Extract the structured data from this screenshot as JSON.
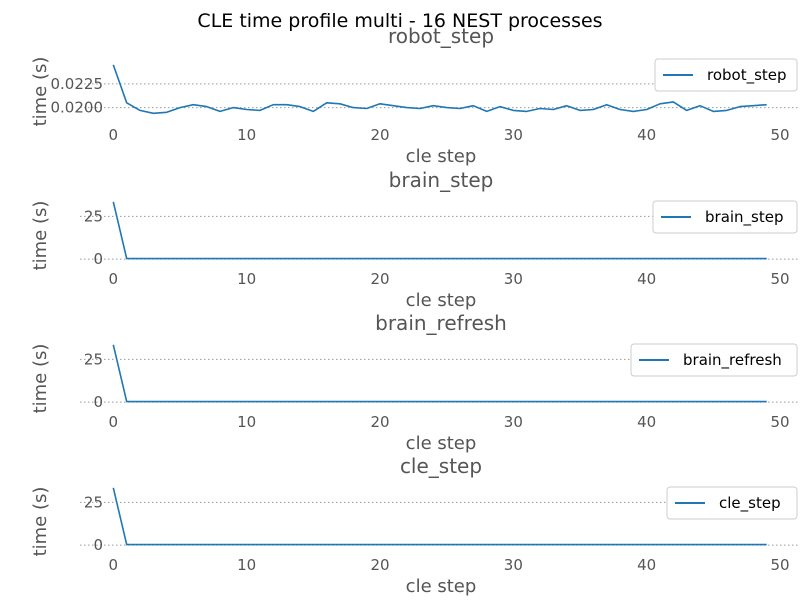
{
  "figure": {
    "suptitle": "CLE time profile multi - 16 NEST processes"
  },
  "chart_data": [
    {
      "type": "line",
      "title": "robot_step",
      "xlabel": "cle step",
      "ylabel": "time (s)",
      "xlim": [
        -2.5,
        51.5
      ],
      "ylim": [
        0.0189,
        0.0266
      ],
      "xticks": [
        0,
        10,
        20,
        30,
        40,
        50
      ],
      "yticks": [
        0.02,
        0.0225
      ],
      "ytick_labels": [
        "0.0200",
        "0.0225"
      ],
      "grid": "y dotted",
      "legend_position": "right",
      "series": [
        {
          "name": "robot_step",
          "color": "#1f77b4",
          "x": [
            0,
            1,
            2,
            3,
            4,
            5,
            6,
            7,
            8,
            9,
            10,
            11,
            12,
            13,
            14,
            15,
            16,
            17,
            18,
            19,
            20,
            21,
            22,
            23,
            24,
            25,
            26,
            27,
            28,
            29,
            30,
            31,
            32,
            33,
            34,
            35,
            36,
            37,
            38,
            39,
            40,
            41,
            42,
            43,
            44,
            45,
            46,
            47,
            48,
            49
          ],
          "values": [
            0.0245,
            0.0205,
            0.0197,
            0.0194,
            0.0195,
            0.02,
            0.0203,
            0.0201,
            0.0196,
            0.02,
            0.0198,
            0.0197,
            0.0203,
            0.0203,
            0.0201,
            0.0196,
            0.0205,
            0.0204,
            0.02,
            0.0199,
            0.0204,
            0.0202,
            0.02,
            0.0199,
            0.0202,
            0.02,
            0.0199,
            0.0202,
            0.0196,
            0.0201,
            0.0197,
            0.0196,
            0.0199,
            0.0198,
            0.0202,
            0.0197,
            0.0198,
            0.0203,
            0.0198,
            0.0196,
            0.0198,
            0.0204,
            0.0206,
            0.0197,
            0.0202,
            0.0196,
            0.0197,
            0.0201,
            0.0202,
            0.0203
          ]
        }
      ]
    },
    {
      "type": "line",
      "title": "brain_step",
      "xlabel": "cle step",
      "ylabel": "time (s)",
      "xlim": [
        -2.5,
        51.5
      ],
      "ylim": [
        -1.7,
        41
      ],
      "xticks": [
        0,
        10,
        20,
        30,
        40,
        50
      ],
      "yticks": [
        0,
        25
      ],
      "ytick_labels": [
        "0",
        "25"
      ],
      "grid": "y dotted",
      "legend_position": "right",
      "series": [
        {
          "name": "brain_step",
          "color": "#1f77b4",
          "x": [
            0,
            1,
            2,
            3,
            4,
            5,
            6,
            7,
            8,
            9,
            10,
            11,
            12,
            13,
            14,
            15,
            16,
            17,
            18,
            19,
            20,
            21,
            22,
            23,
            24,
            25,
            26,
            27,
            28,
            29,
            30,
            31,
            32,
            33,
            34,
            35,
            36,
            37,
            38,
            39,
            40,
            41,
            42,
            43,
            44,
            45,
            46,
            47,
            48,
            49
          ],
          "values": [
            33.5,
            0.3,
            0.3,
            0.3,
            0.3,
            0.3,
            0.3,
            0.3,
            0.3,
            0.3,
            0.3,
            0.3,
            0.3,
            0.3,
            0.3,
            0.3,
            0.3,
            0.3,
            0.3,
            0.3,
            0.3,
            0.3,
            0.3,
            0.3,
            0.3,
            0.3,
            0.3,
            0.3,
            0.3,
            0.3,
            0.3,
            0.3,
            0.3,
            0.3,
            0.3,
            0.3,
            0.3,
            0.3,
            0.3,
            0.3,
            0.3,
            0.3,
            0.3,
            0.3,
            0.3,
            0.3,
            0.3,
            0.3,
            0.3,
            0.3
          ]
        }
      ]
    },
    {
      "type": "line",
      "title": "brain_refresh",
      "xlabel": "cle step",
      "ylabel": "time (s)",
      "xlim": [
        -2.5,
        51.5
      ],
      "ylim": [
        -1.7,
        41
      ],
      "xticks": [
        0,
        10,
        20,
        30,
        40,
        50
      ],
      "yticks": [
        0,
        25
      ],
      "ytick_labels": [
        "0",
        "25"
      ],
      "grid": "y dotted",
      "legend_position": "right",
      "series": [
        {
          "name": "brain_refresh",
          "color": "#1f77b4",
          "x": [
            0,
            1,
            2,
            3,
            4,
            5,
            6,
            7,
            8,
            9,
            10,
            11,
            12,
            13,
            14,
            15,
            16,
            17,
            18,
            19,
            20,
            21,
            22,
            23,
            24,
            25,
            26,
            27,
            28,
            29,
            30,
            31,
            32,
            33,
            34,
            35,
            36,
            37,
            38,
            39,
            40,
            41,
            42,
            43,
            44,
            45,
            46,
            47,
            48,
            49
          ],
          "values": [
            33.5,
            0.3,
            0.3,
            0.3,
            0.3,
            0.3,
            0.3,
            0.3,
            0.3,
            0.3,
            0.3,
            0.3,
            0.3,
            0.3,
            0.3,
            0.3,
            0.3,
            0.3,
            0.3,
            0.3,
            0.3,
            0.3,
            0.3,
            0.3,
            0.3,
            0.3,
            0.3,
            0.3,
            0.3,
            0.3,
            0.3,
            0.3,
            0.3,
            0.3,
            0.3,
            0.3,
            0.3,
            0.3,
            0.3,
            0.3,
            0.3,
            0.3,
            0.3,
            0.3,
            0.3,
            0.3,
            0.3,
            0.3,
            0.3,
            0.3
          ]
        }
      ]
    },
    {
      "type": "line",
      "title": "cle_step",
      "xlabel": "cle step",
      "ylabel": "time (s)",
      "xlim": [
        -2.5,
        51.5
      ],
      "ylim": [
        -1.7,
        41
      ],
      "xticks": [
        0,
        10,
        20,
        30,
        40,
        50
      ],
      "yticks": [
        0,
        25
      ],
      "ytick_labels": [
        "0",
        "25"
      ],
      "grid": "y dotted",
      "legend_position": "right",
      "series": [
        {
          "name": "cle_step",
          "color": "#1f77b4",
          "x": [
            0,
            1,
            2,
            3,
            4,
            5,
            6,
            7,
            8,
            9,
            10,
            11,
            12,
            13,
            14,
            15,
            16,
            17,
            18,
            19,
            20,
            21,
            22,
            23,
            24,
            25,
            26,
            27,
            28,
            29,
            30,
            31,
            32,
            33,
            34,
            35,
            36,
            37,
            38,
            39,
            40,
            41,
            42,
            43,
            44,
            45,
            46,
            47,
            48,
            49
          ],
          "values": [
            33.5,
            0.3,
            0.3,
            0.3,
            0.3,
            0.3,
            0.3,
            0.3,
            0.3,
            0.3,
            0.3,
            0.3,
            0.3,
            0.3,
            0.3,
            0.3,
            0.3,
            0.3,
            0.3,
            0.3,
            0.3,
            0.3,
            0.3,
            0.3,
            0.3,
            0.3,
            0.3,
            0.3,
            0.3,
            0.3,
            0.3,
            0.3,
            0.3,
            0.3,
            0.3,
            0.3,
            0.3,
            0.3,
            0.3,
            0.3,
            0.3,
            0.3,
            0.3,
            0.3,
            0.3,
            0.3,
            0.3,
            0.3,
            0.3,
            0.3
          ]
        }
      ]
    }
  ]
}
